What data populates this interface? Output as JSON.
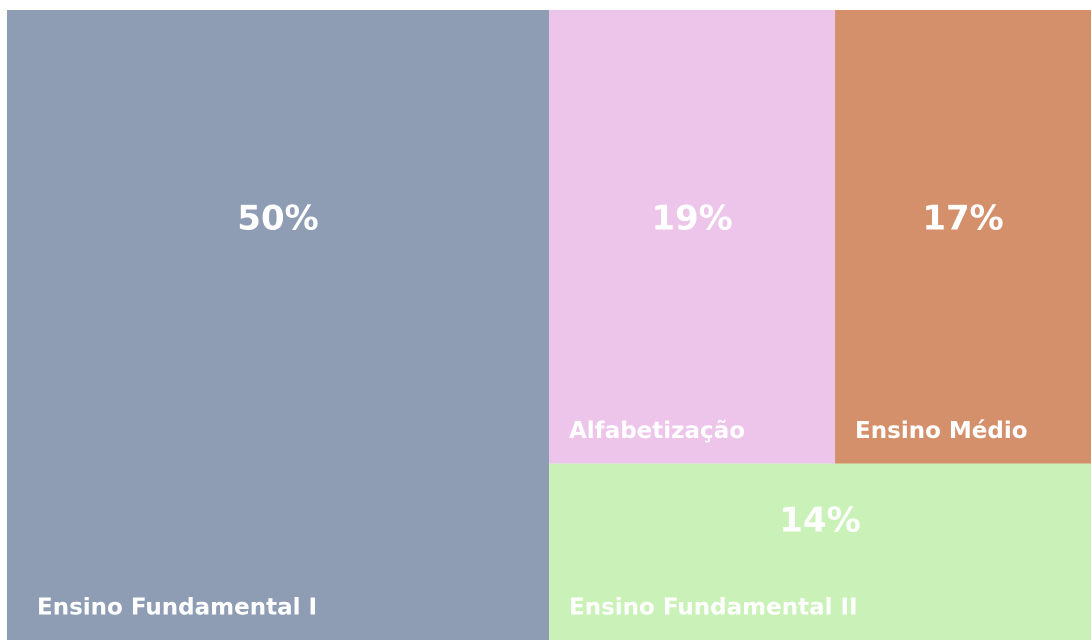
{
  "chart_data": {
    "type": "treemap",
    "categories": [
      "Ensino Fundamental I",
      "Alfabetização",
      "Ensino Médio",
      "Ensino Fundamental II"
    ],
    "values": [
      50,
      19,
      17,
      14
    ],
    "value_labels": [
      "50%",
      "19%",
      "17%",
      "14%"
    ],
    "colors": [
      "#8e9db4",
      "#edc4ea",
      "#d4906b",
      "#caf2b8"
    ]
  }
}
